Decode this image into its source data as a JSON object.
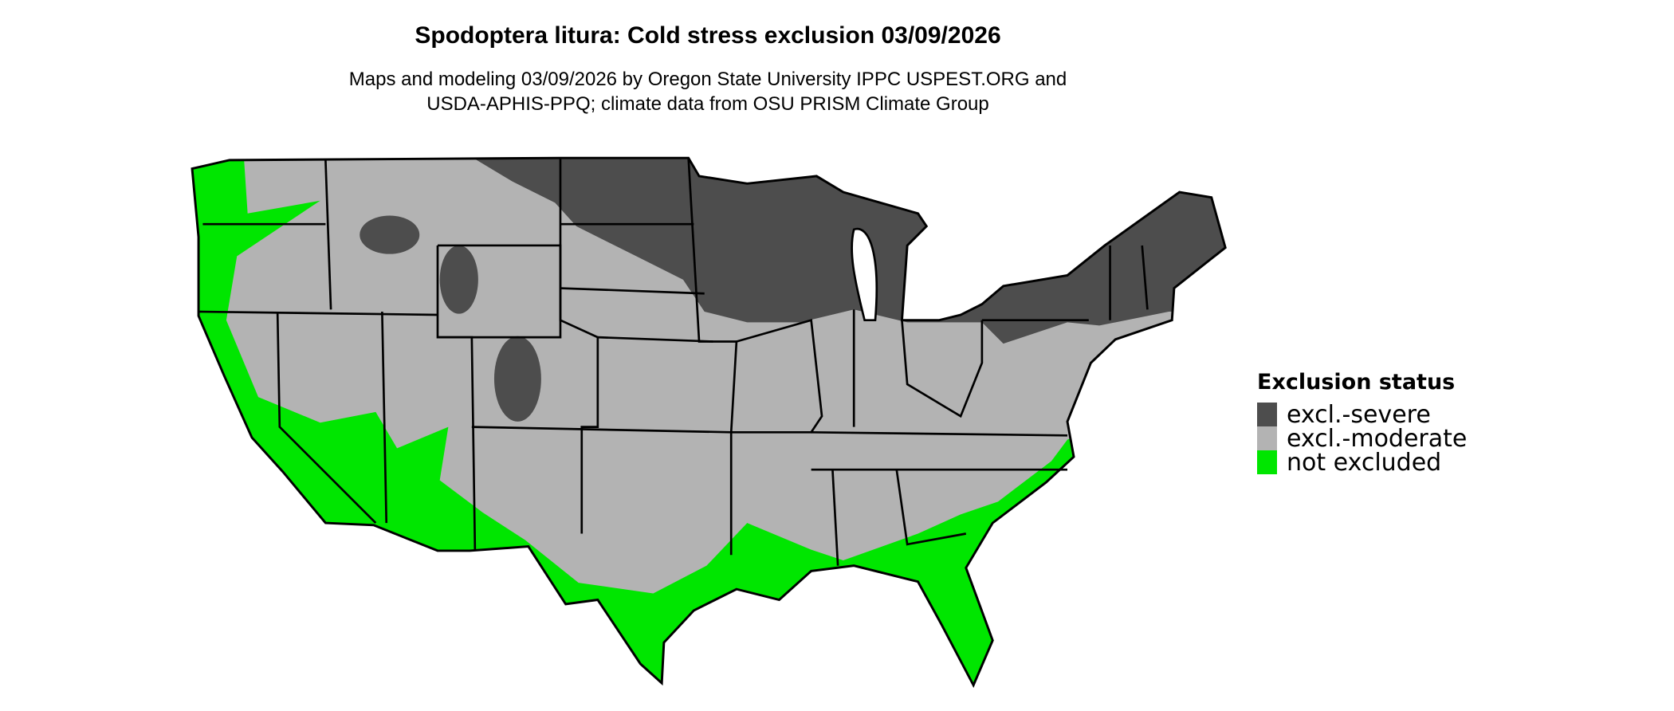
{
  "title": "Spodoptera litura: Cold stress exclusion 03/09/2026",
  "subtitle_line1": "Maps and modeling 03/09/2026 by Oregon State University IPPC USPEST.ORG and",
  "subtitle_line2": "USDA-APHIS-PPQ; climate data from OSU PRISM Climate Group",
  "legend": {
    "title": "Exclusion status",
    "items": [
      {
        "label": "excl.-severe",
        "color": "#4d4d4d"
      },
      {
        "label": "excl.-moderate",
        "color": "#b3b3b3"
      },
      {
        "label": "not excluded",
        "color": "#00e600"
      }
    ]
  }
}
